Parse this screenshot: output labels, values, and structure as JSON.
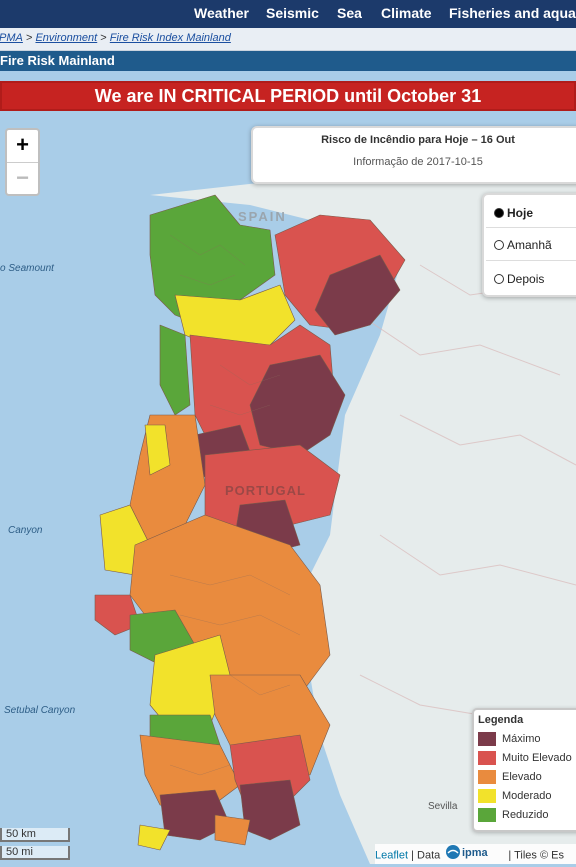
{
  "nav": {
    "items": [
      "Weather",
      "Seismic",
      "Sea",
      "Climate",
      "Fisheries and aquacu"
    ]
  },
  "breadcrumb": {
    "root": "IPMA",
    "sep1": ">",
    "environment": "Environment",
    "sep2": ">",
    "current": "Fire Risk Index Mainland"
  },
  "section_title": "Fire Risk Mainland",
  "banner": "We are IN CRITICAL PERIOD until October 31",
  "map": {
    "zoom_in": "+",
    "zoom_out": "−",
    "info_title": "Risco de Incêndio para Hoje – 16 Out",
    "info_date": "Informação de 2017-10-15",
    "day_options": [
      {
        "label": "Hoje",
        "selected": true
      },
      {
        "label": "Amanhã",
        "selected": false
      },
      {
        "label": "Depois",
        "selected": false
      }
    ],
    "labels": {
      "spain": "SPAIN",
      "portugal": "PORTUGAL",
      "seamount": "o Seamount",
      "canyon": "Canyon",
      "setubal": "Setubal Canyon",
      "sevilla": "Sevilla"
    },
    "legend": {
      "title": "Legenda",
      "items": [
        {
          "label": "Máximo",
          "color": "#7b3b4a"
        },
        {
          "label": "Muito Elevado",
          "color": "#d9534f"
        },
        {
          "label": "Elevado",
          "color": "#e98b3e"
        },
        {
          "label": "Moderado",
          "color": "#f2e22b"
        },
        {
          "label": "Reduzido",
          "color": "#5aa63a"
        }
      ]
    },
    "scale": {
      "km": "50 km",
      "mi": "50 mi"
    },
    "attribution": {
      "leaflet": "Leaflet",
      "sep": "|",
      "data": "Data",
      "logo_text": "ipma",
      "tiles": "| Tiles © Es"
    }
  },
  "colors": {
    "nav_bg": "#1c3a6b",
    "banner_bg": "#c62321",
    "max": "#7b3b4a",
    "very_high": "#d9534f",
    "high": "#e98b3e",
    "moderate": "#f2e22b",
    "low": "#5aa63a",
    "sea": "#a9cde8",
    "land": "#e8eeee"
  }
}
